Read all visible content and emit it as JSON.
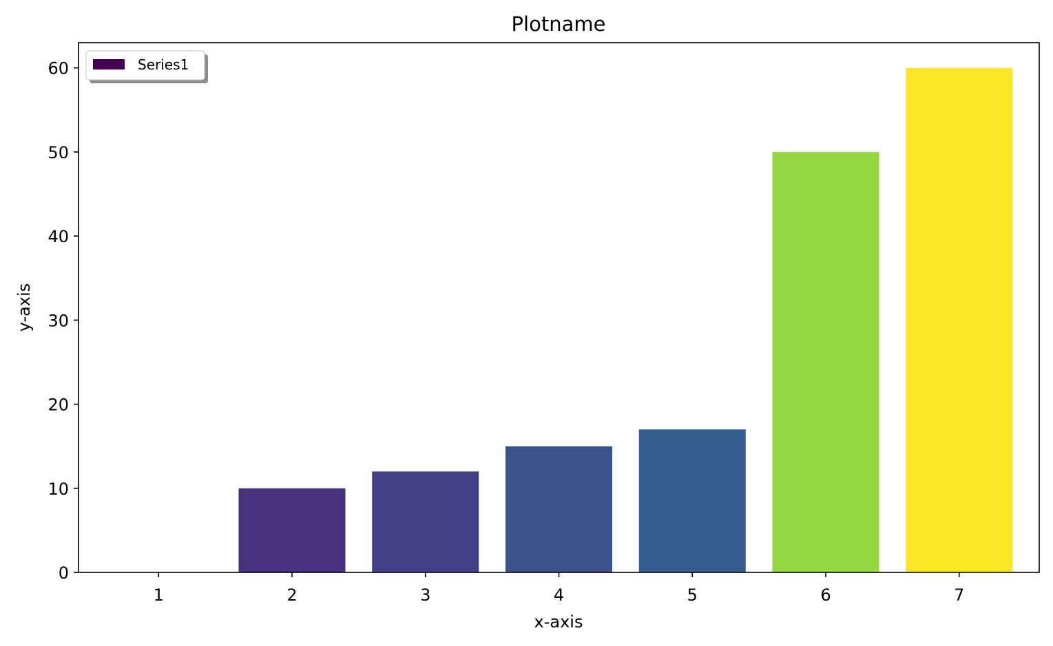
{
  "chart_data": {
    "type": "bar",
    "title": "Plotname",
    "xlabel": "x-axis",
    "ylabel": "y-axis",
    "categories": [
      "1",
      "2",
      "3",
      "4",
      "5",
      "6",
      "7"
    ],
    "series": [
      {
        "name": "Series1",
        "values": [
          0,
          10,
          12,
          15,
          17,
          50,
          60
        ],
        "colors": [
          "#440154",
          "#46327e",
          "#424086",
          "#3b528b",
          "#365c8d",
          "#93d741",
          "#fde725"
        ]
      }
    ],
    "ylim": [
      0,
      63
    ],
    "yticks": [
      0,
      10,
      20,
      30,
      40,
      50,
      60
    ],
    "grid": false,
    "legend": {
      "placement": "top-left",
      "entries": [
        {
          "label": "Series1",
          "color": "#440154"
        }
      ]
    }
  }
}
